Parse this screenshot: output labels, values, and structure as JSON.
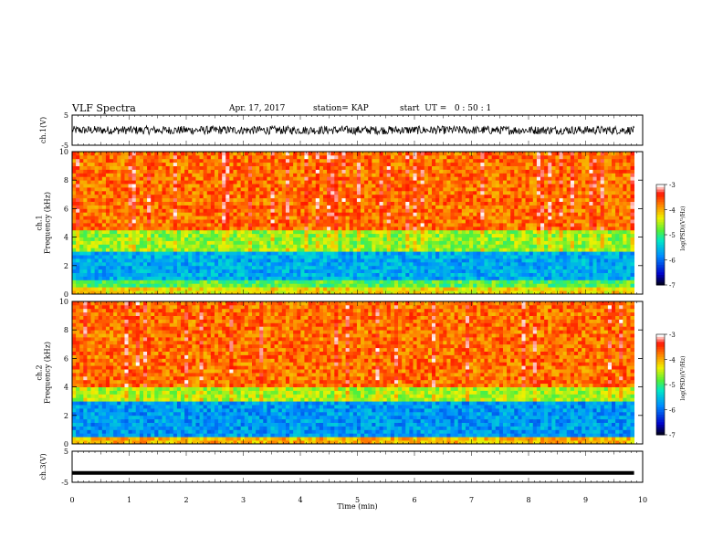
{
  "header": {
    "title": "VLF Spectra",
    "date": "Apr. 17, 2017",
    "station": "station= KAP",
    "start_ut": "start  UT =   0 : 50 : 1"
  },
  "chart_data": [
    {
      "type": "line",
      "name": "ch1-waveform",
      "ylabel": "ch.1(V)",
      "ylim": [
        -5,
        5
      ],
      "yticks": [
        "5",
        "-5"
      ],
      "xlim": [
        0,
        10
      ],
      "x_end": 9.85,
      "waveform_level": 0,
      "waveform_amplitude": 1.4
    },
    {
      "type": "heatmap",
      "name": "ch1-spectrogram",
      "ylabel": "ch.1\nFrequency (kHz)",
      "ylim": [
        0,
        10
      ],
      "yticks": [
        "0",
        "2",
        "4",
        "6",
        "8",
        "10"
      ],
      "xlim": [
        0,
        10
      ],
      "x_end": 9.85,
      "colorbar": {
        "label": "log(PSD)(V²/Hz)",
        "ticks": [
          "-3",
          "-4",
          "-5",
          "-6",
          "-7"
        ],
        "range": [
          -7,
          -3
        ]
      },
      "bands": [
        {
          "from": 0,
          "to": 0.5,
          "level": -4.2
        },
        {
          "from": 0.5,
          "to": 1.0,
          "level": -4.8
        },
        {
          "from": 1.0,
          "to": 3.0,
          "level": -5.6
        },
        {
          "from": 3.0,
          "to": 4.5,
          "level": -4.6
        },
        {
          "from": 4.5,
          "to": 10,
          "level": -3.7
        }
      ]
    },
    {
      "type": "heatmap",
      "name": "ch2-spectrogram",
      "ylabel": "ch.2\nFrequency (kHz)",
      "ylim": [
        0,
        10
      ],
      "yticks": [
        "0",
        "2",
        "4",
        "6",
        "8",
        "10"
      ],
      "xlim": [
        0,
        10
      ],
      "x_end": 9.85,
      "colorbar": {
        "label": "log(PSD)(V²/Hz)",
        "ticks": [
          "-3",
          "-4",
          "-5",
          "-6",
          "-7"
        ],
        "range": [
          -7,
          -3
        ]
      },
      "bands": [
        {
          "from": 0,
          "to": 0.4,
          "level": -4.0
        },
        {
          "from": 0.4,
          "to": 3.0,
          "level": -5.7
        },
        {
          "from": 3.0,
          "to": 4.0,
          "level": -4.5
        },
        {
          "from": 4.0,
          "to": 10,
          "level": -3.7
        }
      ]
    },
    {
      "type": "line",
      "name": "ch3-waveform",
      "ylabel": "ch.3(V)",
      "ylim": [
        -5,
        5
      ],
      "yticks": [
        "5",
        "-5"
      ],
      "xlim": [
        0,
        10
      ],
      "x_end": 9.85,
      "waveform_level": -2,
      "waveform_amplitude": 0
    }
  ],
  "xaxis": {
    "label": "Time (min)",
    "ticks": [
      "0",
      "1",
      "2",
      "3",
      "4",
      "5",
      "6",
      "7",
      "8",
      "9",
      "10"
    ]
  }
}
